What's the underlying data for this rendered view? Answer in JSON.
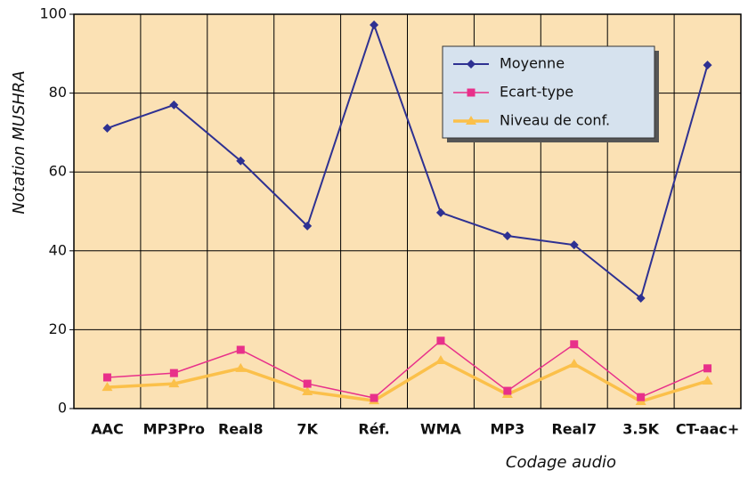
{
  "chart_data": {
    "type": "line",
    "categories": [
      "AAC",
      "MP3Pro",
      "Real8",
      "7K",
      "Réf.",
      "WMA",
      "MP3",
      "Real7",
      "3.5K",
      "CT-aac+"
    ],
    "series": [
      {
        "name": "Moyenne",
        "color": "#2e3192",
        "marker": "diamond",
        "values": [
          71.1,
          77,
          62.8,
          46.3,
          97.3,
          49.7,
          43.8,
          41.5,
          28,
          87.1
        ]
      },
      {
        "name": "Ecart-type",
        "color": "#e8308a",
        "marker": "square",
        "values": [
          7.9,
          9,
          14.9,
          6.3,
          2.7,
          17.2,
          4.5,
          16.3,
          2.9,
          10.2
        ]
      },
      {
        "name": "Niveau de conf.",
        "color": "#fbc04a",
        "marker": "triangle",
        "values": [
          5.4,
          6.3,
          10.2,
          4.3,
          2,
          12.2,
          3.6,
          11.3,
          1.8,
          7
        ]
      }
    ],
    "ylim": [
      0,
      100
    ],
    "yticks": [
      0,
      20,
      40,
      60,
      80,
      100
    ],
    "grid": true,
    "xlabel": "Codage audio",
    "ylabel": "Notation MUSHRA",
    "legend": "upper right"
  }
}
